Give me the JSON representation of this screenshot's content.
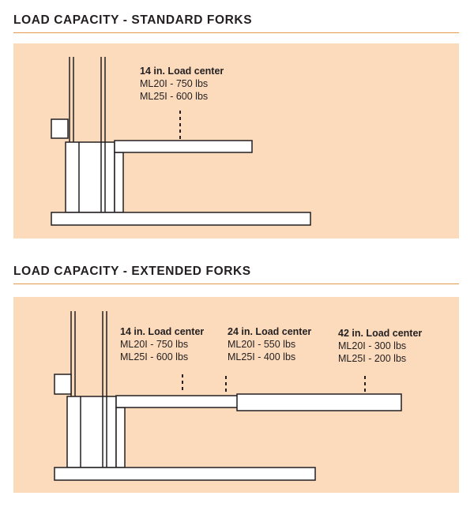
{
  "sections": [
    {
      "title": "LOAD CAPACITY - STANDARD FORKS",
      "labels": [
        {
          "heading": "14 in. Load center",
          "lines": [
            "ML20I - 750 lbs",
            "ML25I - 600 lbs"
          ]
        }
      ]
    },
    {
      "title": "LOAD CAPACITY - EXTENDED FORKS",
      "labels": [
        {
          "heading": "14 in. Load center",
          "lines": [
            "ML20I - 750 lbs",
            "ML25I - 600 lbs"
          ]
        },
        {
          "heading": "24 in. Load center",
          "lines": [
            "ML20I - 550 lbs",
            "ML25I - 400 lbs"
          ]
        },
        {
          "heading": "42 in. Load center",
          "lines": [
            "ML20I - 300 lbs",
            "ML25I - 200 lbs"
          ]
        }
      ]
    }
  ],
  "colors": {
    "panel_background": "#fcdbbd",
    "rule": "#e39a4c",
    "outline": "#231f20"
  }
}
